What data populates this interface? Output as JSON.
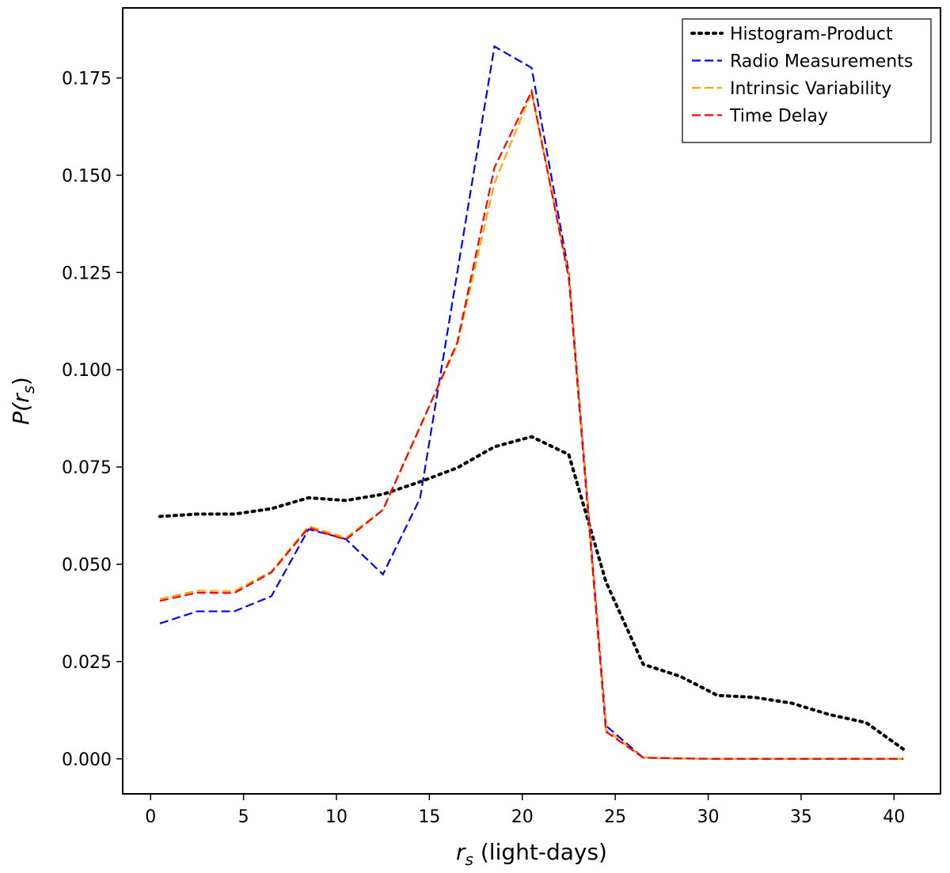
{
  "chart_data": {
    "type": "line",
    "title": "",
    "xlabel": "r_s (light-days)",
    "xlabel_main": "r",
    "xlabel_sub": "s",
    "xlabel_rest": " (light-days)",
    "ylabel": "P(r_s)",
    "ylabel_main": "P(r",
    "ylabel_sub": "s",
    "ylabel_close": ")",
    "xlim": [
      -1.5,
      42.5
    ],
    "ylim": [
      -0.009,
      0.193
    ],
    "xticks": [
      0,
      5,
      10,
      15,
      20,
      25,
      30,
      35,
      40
    ],
    "xtick_labels": [
      "0",
      "5",
      "10",
      "15",
      "20",
      "25",
      "30",
      "35",
      "40"
    ],
    "yticks": [
      0.0,
      0.025,
      0.05,
      0.075,
      0.1,
      0.125,
      0.15,
      0.175
    ],
    "ytick_labels": [
      "0.000",
      "0.025",
      "0.050",
      "0.075",
      "0.100",
      "0.125",
      "0.150",
      "0.175"
    ],
    "grid": false,
    "legend_position": "top-right",
    "series": [
      {
        "name": "Histogram-Product",
        "color": "#000000",
        "style": "dotted",
        "x": [
          0.5,
          2.5,
          4.5,
          6.5,
          8.5,
          10.5,
          12.5,
          14.5,
          16.5,
          18.5,
          20.5,
          22.5,
          24.5,
          26.5,
          28.5,
          30.5,
          32.5,
          34.5,
          36.5,
          38.5,
          40.5
        ],
        "y": [
          0.0623,
          0.0629,
          0.0629,
          0.0643,
          0.0671,
          0.0664,
          0.068,
          0.0712,
          0.0748,
          0.0802,
          0.0828,
          0.0782,
          0.0455,
          0.0243,
          0.0212,
          0.0163,
          0.0158,
          0.0143,
          0.0114,
          0.0093,
          0.0025
        ]
      },
      {
        "name": "Radio Measurements",
        "color": "#0000ff",
        "style": "dashed",
        "x": [
          0.5,
          2.5,
          4.5,
          6.5,
          8.5,
          10.5,
          12.5,
          14.5,
          16.5,
          18.5,
          20.5,
          22.5,
          24.5,
          26.5,
          28.5,
          30.5,
          32.5,
          34.5,
          36.5,
          38.5,
          40.5
        ],
        "y": [
          0.0348,
          0.0379,
          0.0379,
          0.0418,
          0.059,
          0.0565,
          0.0474,
          0.067,
          0.125,
          0.1831,
          0.1776,
          0.125,
          0.0085,
          0.0003,
          0.0001,
          0.0,
          0.0,
          0.0,
          0.0,
          0.0,
          0.0
        ]
      },
      {
        "name": "Intrinsic Variability",
        "color": "#ffa500",
        "style": "dashed",
        "x": [
          0.5,
          2.5,
          4.5,
          6.5,
          8.5,
          10.5,
          12.5,
          14.5,
          16.5,
          18.5,
          20.5,
          22.5,
          24.5,
          26.5,
          28.5,
          30.5,
          32.5,
          34.5,
          36.5,
          38.5,
          40.5
        ],
        "y": [
          0.0411,
          0.0432,
          0.0431,
          0.0482,
          0.0598,
          0.0568,
          0.064,
          0.0855,
          0.1065,
          0.148,
          0.1712,
          0.124,
          0.0075,
          0.0003,
          0.0001,
          0.0,
          0.0,
          0.0,
          0.0,
          0.0,
          0.0
        ]
      },
      {
        "name": "Time Delay",
        "color": "#ff0000",
        "style": "dashed",
        "x": [
          0.5,
          2.5,
          4.5,
          6.5,
          8.5,
          10.5,
          12.5,
          14.5,
          16.5,
          18.5,
          20.5,
          22.5,
          24.5,
          26.5,
          28.5,
          30.5,
          32.5,
          34.5,
          36.5,
          38.5,
          40.5
        ],
        "y": [
          0.0406,
          0.0427,
          0.0426,
          0.0479,
          0.0594,
          0.0563,
          0.064,
          0.0853,
          0.107,
          0.152,
          0.1716,
          0.1235,
          0.007,
          0.0003,
          0.0001,
          0.0,
          0.0,
          0.0,
          0.0,
          0.0,
          0.0
        ]
      }
    ]
  }
}
